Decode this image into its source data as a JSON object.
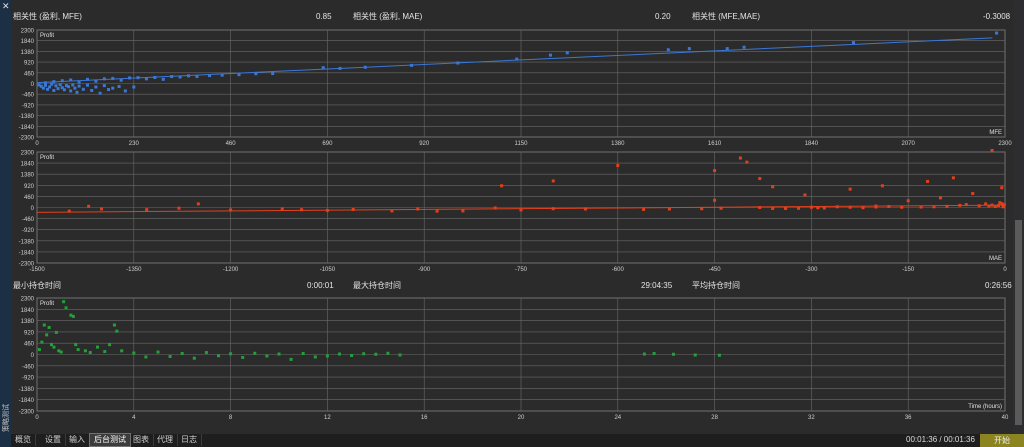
{
  "side": {
    "close_glyph": "✕",
    "vertical_label": "策略测试"
  },
  "stats": {
    "row1": [
      {
        "label": "相关性 (盈利, MFE)",
        "value": "0.85"
      },
      {
        "label": "相关性 (盈利, MAE)",
        "value": "0.20"
      },
      {
        "label": "相关性 (MFE,MAE)",
        "value": "-0.3008"
      }
    ],
    "row2": [
      {
        "label": "最小持仓时间",
        "value": "0:00:01"
      },
      {
        "label": "最大持仓时间",
        "value": "29:04:35"
      },
      {
        "label": "平均持仓时间",
        "value": "0:26:56"
      }
    ]
  },
  "tabs": [
    {
      "label": "概览",
      "active": false
    },
    {
      "label": "设置",
      "active": false
    },
    {
      "label": "输入",
      "active": false
    },
    {
      "label": "后台测试",
      "active": true
    },
    {
      "label": "图表",
      "active": false
    },
    {
      "label": "代理",
      "active": false
    },
    {
      "label": "日志",
      "active": false
    }
  ],
  "timer": "00:01:36 / 00:01:36",
  "start_button": "开始",
  "colors": {
    "mfe": "#3a78d8",
    "mae": "#e2401c",
    "time": "#22a03a",
    "grid": "#6a6a6a",
    "start": "#8b8420"
  },
  "icons": {
    "close": "close-icon"
  },
  "chart_data": [
    {
      "type": "scatter",
      "ylabel": "Profit",
      "xlabel": "MFE",
      "yticks": [
        2300,
        1840,
        1380,
        920,
        460,
        0,
        -460,
        -920,
        -1380,
        -1840,
        -2300
      ],
      "xticks": [
        0,
        230,
        460,
        690,
        920,
        1150,
        1380,
        1610,
        1840,
        2070,
        2300
      ],
      "xlim": [
        0,
        2300
      ],
      "ylim": [
        -2300,
        2300
      ],
      "grid": true,
      "trendline": [
        [
          0,
          40
        ],
        [
          2270,
          1960
        ]
      ],
      "points": [
        [
          5,
          -60
        ],
        [
          10,
          -120
        ],
        [
          15,
          -200
        ],
        [
          20,
          -80
        ],
        [
          25,
          -250
        ],
        [
          30,
          -150
        ],
        [
          35,
          -30
        ],
        [
          40,
          -300
        ],
        [
          45,
          -100
        ],
        [
          50,
          -220
        ],
        [
          55,
          -50
        ],
        [
          60,
          -180
        ],
        [
          65,
          -270
        ],
        [
          70,
          -90
        ],
        [
          75,
          -140
        ],
        [
          80,
          -320
        ],
        [
          85,
          -60
        ],
        [
          90,
          -200
        ],
        [
          95,
          -380
        ],
        [
          100,
          -110
        ],
        [
          110,
          -250
        ],
        [
          120,
          -70
        ],
        [
          130,
          -300
        ],
        [
          140,
          -150
        ],
        [
          150,
          -420
        ],
        [
          160,
          -90
        ],
        [
          170,
          -260
        ],
        [
          180,
          -200
        ],
        [
          195,
          -130
        ],
        [
          210,
          -320
        ],
        [
          230,
          -150
        ],
        [
          20,
          30
        ],
        [
          40,
          80
        ],
        [
          60,
          120
        ],
        [
          80,
          150
        ],
        [
          100,
          60
        ],
        [
          120,
          180
        ],
        [
          140,
          100
        ],
        [
          160,
          200
        ],
        [
          180,
          220
        ],
        [
          200,
          140
        ],
        [
          220,
          240
        ],
        [
          240,
          250
        ],
        [
          260,
          200
        ],
        [
          280,
          260
        ],
        [
          300,
          180
        ],
        [
          320,
          300
        ],
        [
          340,
          280
        ],
        [
          360,
          330
        ],
        [
          380,
          300
        ],
        [
          410,
          340
        ],
        [
          440,
          360
        ],
        [
          480,
          380
        ],
        [
          520,
          420
        ],
        [
          560,
          430
        ],
        [
          680,
          680
        ],
        [
          720,
          650
        ],
        [
          780,
          700
        ],
        [
          890,
          780
        ],
        [
          1000,
          880
        ],
        [
          1140,
          1050
        ],
        [
          1220,
          1220
        ],
        [
          1260,
          1320
        ],
        [
          1500,
          1450
        ],
        [
          1550,
          1500
        ],
        [
          1640,
          1500
        ],
        [
          1680,
          1560
        ],
        [
          1940,
          1760
        ],
        [
          2280,
          2170
        ]
      ]
    },
    {
      "type": "scatter",
      "ylabel": "Profit",
      "xlabel": "MAE",
      "yticks": [
        2300,
        1840,
        1380,
        920,
        460,
        0,
        -460,
        -920,
        -1380,
        -1840,
        -2300
      ],
      "xticks": [
        -1500,
        -1350,
        -1200,
        -1050,
        -900,
        -750,
        -600,
        -450,
        -300,
        -150,
        0
      ],
      "xlim": [
        -1500,
        0
      ],
      "ylim": [
        -2300,
        2300
      ],
      "grid": true,
      "trendline": [
        [
          -1500,
          -200
        ],
        [
          0,
          100
        ]
      ],
      "points": [
        [
          -1450,
          -150
        ],
        [
          -1420,
          50
        ],
        [
          -1400,
          -60
        ],
        [
          -1330,
          -90
        ],
        [
          -1280,
          -30
        ],
        [
          -1250,
          150
        ],
        [
          -1200,
          -100
        ],
        [
          -1120,
          -60
        ],
        [
          -1090,
          -90
        ],
        [
          -1050,
          -120
        ],
        [
          -1010,
          -80
        ],
        [
          -950,
          -140
        ],
        [
          -910,
          -60
        ],
        [
          -880,
          -150
        ],
        [
          -840,
          -140
        ],
        [
          -790,
          -20
        ],
        [
          -780,
          900
        ],
        [
          -750,
          -100
        ],
        [
          -700,
          -50
        ],
        [
          -700,
          1100
        ],
        [
          -650,
          -60
        ],
        [
          -600,
          1740
        ],
        [
          -560,
          -80
        ],
        [
          -520,
          -60
        ],
        [
          -470,
          -50
        ],
        [
          -450,
          300
        ],
        [
          -450,
          1530
        ],
        [
          -440,
          -30
        ],
        [
          -410,
          2050
        ],
        [
          -380,
          1200
        ],
        [
          -400,
          1880
        ],
        [
          -360,
          860
        ],
        [
          -340,
          -40
        ],
        [
          -310,
          520
        ],
        [
          -290,
          -10
        ],
        [
          -240,
          760
        ],
        [
          -200,
          60
        ],
        [
          -190,
          900
        ],
        [
          -150,
          280
        ],
        [
          -120,
          1080
        ],
        [
          -80,
          1230
        ],
        [
          -20,
          2380
        ],
        [
          -5,
          820
        ],
        [
          -50,
          580
        ],
        [
          -100,
          400
        ],
        [
          -70,
          90
        ],
        [
          -60,
          120
        ],
        [
          -40,
          70
        ],
        [
          -30,
          150
        ],
        [
          -25,
          60
        ],
        [
          -20,
          100
        ],
        [
          -15,
          40
        ],
        [
          -10,
          80
        ],
        [
          -8,
          200
        ],
        [
          -5,
          160
        ],
        [
          -3,
          30
        ],
        [
          -2,
          60
        ],
        [
          -1,
          120
        ],
        [
          -90,
          50
        ],
        [
          -110,
          30
        ],
        [
          -130,
          20
        ],
        [
          -160,
          10
        ],
        [
          -180,
          40
        ],
        [
          -200,
          20
        ],
        [
          -220,
          -10
        ],
        [
          -240,
          10
        ],
        [
          -260,
          30
        ],
        [
          -280,
          -20
        ],
        [
          -300,
          10
        ],
        [
          -320,
          -30
        ],
        [
          -340,
          -20
        ],
        [
          -360,
          -40
        ],
        [
          -380,
          0
        ]
      ]
    },
    {
      "type": "scatter",
      "ylabel": "Profit",
      "xlabel": "Time (hours)",
      "yticks": [
        2300,
        1840,
        1380,
        920,
        460,
        0,
        -460,
        -920,
        -1380,
        -1840,
        -2300
      ],
      "xticks": [
        0,
        4,
        8,
        12,
        16,
        20,
        24,
        28,
        32,
        36,
        40
      ],
      "xlim": [
        0,
        40
      ],
      "ylim": [
        -2300,
        2300
      ],
      "grid": true,
      "points": [
        [
          0.1,
          200
        ],
        [
          0.2,
          500
        ],
        [
          0.3,
          1200
        ],
        [
          0.4,
          800
        ],
        [
          0.5,
          1100
        ],
        [
          0.6,
          400
        ],
        [
          0.7,
          300
        ],
        [
          0.8,
          900
        ],
        [
          0.9,
          150
        ],
        [
          1.0,
          100
        ],
        [
          1.1,
          2150
        ],
        [
          1.2,
          1900
        ],
        [
          1.4,
          1600
        ],
        [
          1.5,
          1550
        ],
        [
          1.6,
          400
        ],
        [
          1.7,
          200
        ],
        [
          2.0,
          150
        ],
        [
          2.2,
          80
        ],
        [
          2.5,
          300
        ],
        [
          2.8,
          120
        ],
        [
          3.0,
          400
        ],
        [
          3.2,
          1200
        ],
        [
          3.3,
          950
        ],
        [
          3.5,
          150
        ],
        [
          4.0,
          60
        ],
        [
          4.5,
          -100
        ],
        [
          5.0,
          100
        ],
        [
          5.5,
          -80
        ],
        [
          6.0,
          40
        ],
        [
          6.5,
          -150
        ],
        [
          7.0,
          80
        ],
        [
          7.5,
          -50
        ],
        [
          8.0,
          30
        ],
        [
          8.5,
          -120
        ],
        [
          9.0,
          50
        ],
        [
          9.5,
          -60
        ],
        [
          10.0,
          20
        ],
        [
          10.5,
          -200
        ],
        [
          11.0,
          40
        ],
        [
          11.5,
          -100
        ],
        [
          12.0,
          -60
        ],
        [
          12.5,
          20
        ],
        [
          13.0,
          -40
        ],
        [
          13.5,
          30
        ],
        [
          14.0,
          10
        ],
        [
          14.5,
          50
        ],
        [
          15.0,
          -20
        ],
        [
          25.1,
          20
        ],
        [
          25.5,
          40
        ],
        [
          26.3,
          10
        ],
        [
          27.2,
          -20
        ],
        [
          28.2,
          -30
        ]
      ]
    }
  ]
}
